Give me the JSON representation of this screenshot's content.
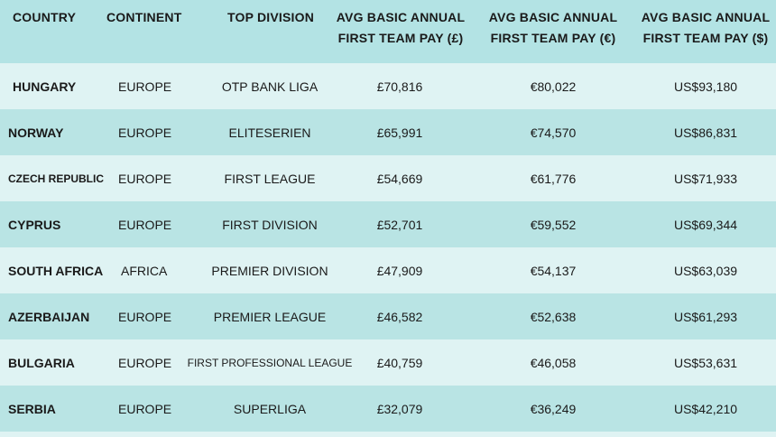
{
  "headers": {
    "country": "COUNTRY",
    "continent": "CONTINENT",
    "top_division": "TOP DIVISION",
    "pay_gbp_line1": "AVG BASIC ANNUAL",
    "pay_gbp_line2": "FIRST TEAM PAY (£)",
    "pay_eur_line1": "AVG BASIC ANNUAL",
    "pay_eur_line2": "FIRST TEAM PAY (€)",
    "pay_usd_line1": "AVG BASIC ANNUAL",
    "pay_usd_line2": "FIRST TEAM PAY ($)"
  },
  "rows": [
    {
      "country": "HUNGARY",
      "continent": "EUROPE",
      "division": "OTP BANK LIGA",
      "gbp": "£70,816",
      "eur": "€80,022",
      "usd": "US$93,180"
    },
    {
      "country": "NORWAY",
      "continent": "EUROPE",
      "division": "ELITESERIEN",
      "gbp": "£65,991",
      "eur": "€74,570",
      "usd": "US$86,831"
    },
    {
      "country": "CZECH REPUBLIC",
      "continent": "EUROPE",
      "division": "FIRST LEAGUE",
      "gbp": "£54,669",
      "eur": "€61,776",
      "usd": "US$71,933"
    },
    {
      "country": "CYPRUS",
      "continent": "EUROPE",
      "division": "FIRST DIVISION",
      "gbp": "£52,701",
      "eur": "€59,552",
      "usd": "US$69,344"
    },
    {
      "country": "SOUTH AFRICA",
      "continent": "AFRICA",
      "division": "PREMIER DIVISION",
      "gbp": "£47,909",
      "eur": "€54,137",
      "usd": "US$63,039"
    },
    {
      "country": "AZERBAIJAN",
      "continent": "EUROPE",
      "division": "PREMIER LEAGUE",
      "gbp": "£46,582",
      "eur": "€52,638",
      "usd": "US$61,293"
    },
    {
      "country": "BULGARIA",
      "continent": "EUROPE",
      "division": "FIRST PROFESSIONAL LEAGUE",
      "gbp": "£40,759",
      "eur": "€46,058",
      "usd": "US$53,631"
    },
    {
      "country": "SERBIA",
      "continent": "EUROPE",
      "division": "SUPERLIGA",
      "gbp": "£32,079",
      "eur": "€36,249",
      "usd": "US$42,210"
    }
  ]
}
